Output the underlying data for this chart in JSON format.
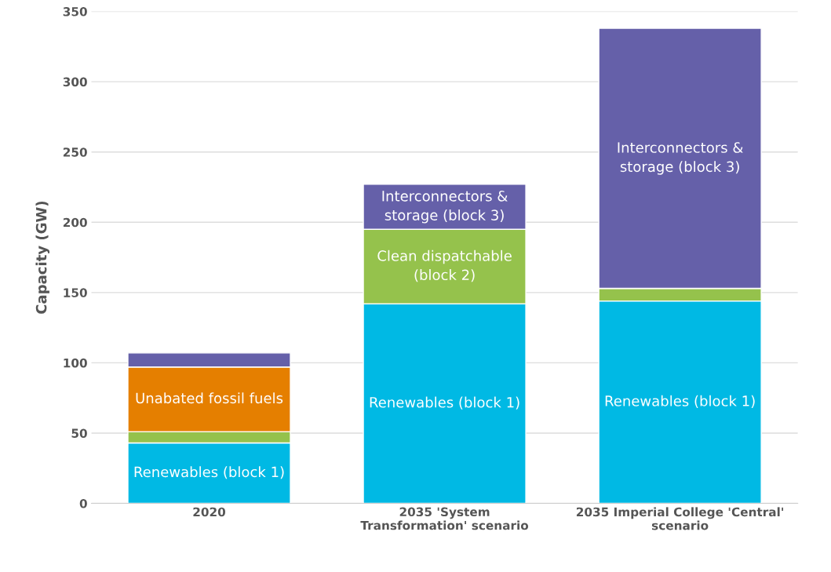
{
  "chart_data": {
    "type": "bar",
    "stacked": true,
    "ylabel": "Capacity (GW)",
    "categories": [
      "2020",
      "2035 'System\nTransformation' scenario",
      "2035 Imperial College 'Central'\nscenario"
    ],
    "series": [
      {
        "name": "Renewables (block 1)",
        "color": "#00b9e4",
        "values": [
          43,
          142,
          144
        ]
      },
      {
        "name": "Clean dispatchable\n(block 2)",
        "color": "#95c24c",
        "values": [
          8,
          53,
          9
        ]
      },
      {
        "name": "Unabated fossil fuels",
        "color": "#e57f00",
        "values": [
          46,
          0,
          0
        ]
      },
      {
        "name": "Interconnectors &\nstorage (block 3)",
        "color": "#6560a9",
        "values": [
          10,
          32,
          185
        ]
      }
    ],
    "ylim": [
      0,
      350
    ],
    "yticks": [
      0,
      50,
      100,
      150,
      200,
      250,
      300,
      350
    ],
    "grid": "y"
  }
}
